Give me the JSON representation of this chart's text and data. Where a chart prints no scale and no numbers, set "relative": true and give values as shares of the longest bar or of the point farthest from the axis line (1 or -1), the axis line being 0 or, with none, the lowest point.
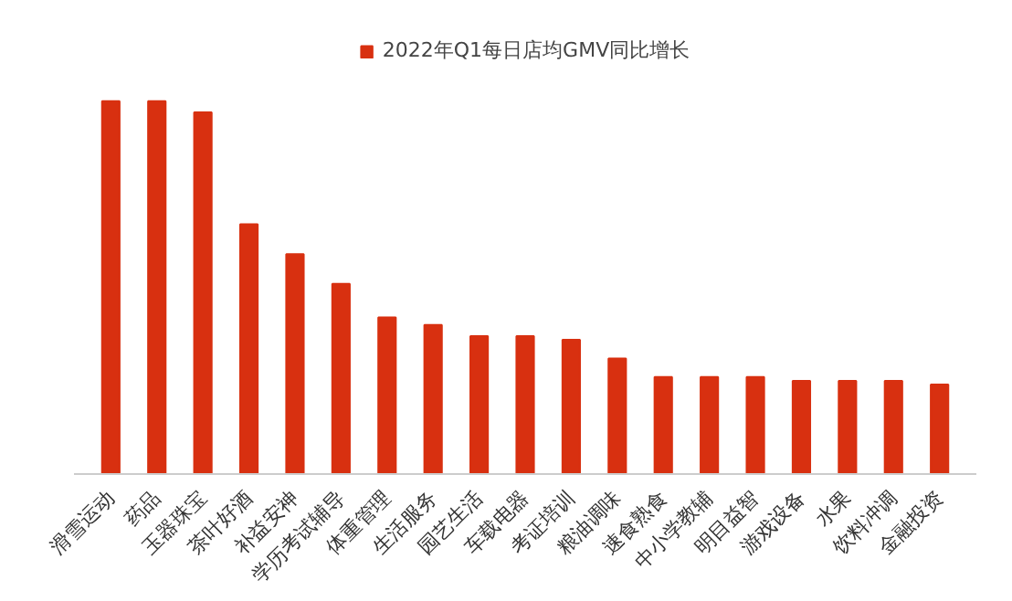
{
  "chart_data": {
    "type": "bar",
    "relative": true,
    "legend": "top",
    "grid": false,
    "categories": [
      "滑雪运动",
      "药品",
      "玉器珠宝",
      "茶叶好酒",
      "补益安神",
      "学历考试辅导",
      "体重管理",
      "生活服务",
      "园艺生活",
      "车载电器",
      "考证培训",
      "粮油调味",
      "速食熟食",
      "中小学教辅",
      "明目益智",
      "游戏设备",
      "水果",
      "饮料冲调",
      "金融投资"
    ],
    "series": [
      {
        "name": "2022年Q1每日店均GMV同比增长",
        "color": "#d83010",
        "values": [
          1,
          1,
          0.97,
          0.67,
          0.59,
          0.51,
          0.42,
          0.4,
          0.37,
          0.37,
          0.36,
          0.31,
          0.26,
          0.26,
          0.26,
          0.25,
          0.25,
          0.25,
          0.24
        ]
      }
    ]
  }
}
